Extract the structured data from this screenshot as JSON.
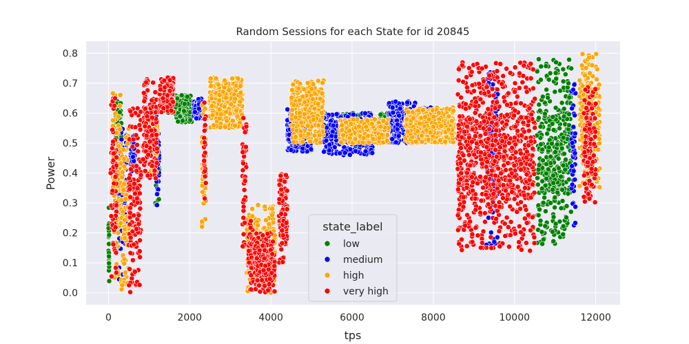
{
  "chart_data": {
    "type": "scatter",
    "title": "Random Sessions for each State for id 20845",
    "xlabel": "tps",
    "ylabel": "Power",
    "xlim": [
      -550,
      12600
    ],
    "ylim": [
      -0.04,
      0.84
    ],
    "xticks": [
      0,
      2000,
      4000,
      6000,
      8000,
      10000,
      12000
    ],
    "yticks": [
      0.0,
      0.1,
      0.2,
      0.3,
      0.4,
      0.5,
      0.6,
      0.7,
      0.8
    ],
    "grid": true,
    "legend": {
      "title": "state_label",
      "placement": "lower-center",
      "entries": [
        "low",
        "medium",
        "high",
        "very high"
      ]
    },
    "colors": {
      "low": "#008000",
      "medium": "#0000ff",
      "high": "#ffa500",
      "very high": "#ff0000",
      "background": "#eaeaf2",
      "grid": "#ffffff"
    },
    "series": [
      {
        "name": "low",
        "segments": [
          {
            "x": [
              0,
              20
            ],
            "y": [
              0.03,
              0.29
            ]
          },
          {
            "x": [
              180,
              320
            ],
            "y": [
              0.5,
              0.64
            ]
          },
          {
            "x": [
              1150,
              1250
            ],
            "y": [
              0.28,
              0.6
            ]
          },
          {
            "x": [
              1450,
              1600
            ],
            "y": [
              0.6,
              0.68
            ]
          },
          {
            "x": [
              1650,
              2050
            ],
            "y": [
              0.57,
              0.66
            ]
          },
          {
            "x": [
              5700,
              6200
            ],
            "y": [
              0.52,
              0.6
            ]
          },
          {
            "x": [
              6700,
              6900
            ],
            "y": [
              0.52,
              0.6
            ]
          },
          {
            "x": [
              7400,
              7800
            ],
            "y": [
              0.52,
              0.6
            ]
          },
          {
            "x": [
              10550,
              11400
            ],
            "y": [
              0.16,
              0.78
            ]
          }
        ]
      },
      {
        "name": "medium",
        "segments": [
          {
            "x": [
              250,
              450
            ],
            "y": [
              0.01,
              0.55
            ]
          },
          {
            "x": [
              550,
              650
            ],
            "y": [
              0.4,
              0.53
            ]
          },
          {
            "x": [
              1150,
              1250
            ],
            "y": [
              0.29,
              0.6
            ]
          },
          {
            "x": [
              2100,
              2300
            ],
            "y": [
              0.58,
              0.65
            ]
          },
          {
            "x": [
              4400,
              5000
            ],
            "y": [
              0.47,
              0.62
            ]
          },
          {
            "x": [
              5300,
              6500
            ],
            "y": [
              0.46,
              0.6
            ]
          },
          {
            "x": [
              6900,
              7600
            ],
            "y": [
              0.5,
              0.64
            ]
          },
          {
            "x": [
              7700,
              8000
            ],
            "y": [
              0.5,
              0.62
            ]
          },
          {
            "x": [
              9300,
              9600
            ],
            "y": [
              0.15,
              0.75
            ]
          },
          {
            "x": [
              11400,
              11500
            ],
            "y": [
              0.2,
              0.7
            ]
          }
        ]
      },
      {
        "name": "high",
        "segments": [
          {
            "x": [
              100,
              300
            ],
            "y": [
              0.05,
              0.67
            ]
          },
          {
            "x": [
              300,
              500
            ],
            "y": [
              0.01,
              0.55
            ]
          },
          {
            "x": [
              1000,
              1200
            ],
            "y": [
              0.4,
              0.62
            ]
          },
          {
            "x": [
              2300,
              2400
            ],
            "y": [
              0.22,
              0.64
            ]
          },
          {
            "x": [
              2500,
              3300
            ],
            "y": [
              0.55,
              0.72
            ]
          },
          {
            "x": [
              3400,
              3700
            ],
            "y": [
              0.0,
              0.3
            ]
          },
          {
            "x": [
              3800,
              4100
            ],
            "y": [
              0.0,
              0.3
            ]
          },
          {
            "x": [
              4500,
              5300
            ],
            "y": [
              0.5,
              0.71
            ]
          },
          {
            "x": [
              5700,
              6900
            ],
            "y": [
              0.5,
              0.58
            ]
          },
          {
            "x": [
              7300,
              8500
            ],
            "y": [
              0.5,
              0.62
            ]
          },
          {
            "x": [
              11600,
              12100
            ],
            "y": [
              0.35,
              0.8
            ]
          }
        ]
      },
      {
        "name": "very high",
        "segments": [
          {
            "x": [
              50,
              200
            ],
            "y": [
              0.05,
              0.65
            ]
          },
          {
            "x": [
              500,
              800
            ],
            "y": [
              0.0,
              0.62
            ]
          },
          {
            "x": [
              850,
              1200
            ],
            "y": [
              0.38,
              0.72
            ]
          },
          {
            "x": [
              1250,
              1600
            ],
            "y": [
              0.6,
              0.72
            ]
          },
          {
            "x": [
              2350,
              2400
            ],
            "y": [
              0.25,
              0.7
            ]
          },
          {
            "x": [
              3300,
              3400
            ],
            "y": [
              0.15,
              0.63
            ]
          },
          {
            "x": [
              3450,
              3600
            ],
            "y": [
              0.0,
              0.25
            ]
          },
          {
            "x": [
              3600,
              4100
            ],
            "y": [
              0.0,
              0.2
            ]
          },
          {
            "x": [
              4200,
              4400
            ],
            "y": [
              0.1,
              0.4
            ]
          },
          {
            "x": [
              8600,
              10500
            ],
            "y": [
              0.14,
              0.77
            ]
          },
          {
            "x": [
              11700,
              12000
            ],
            "y": [
              0.3,
              0.7
            ]
          }
        ]
      }
    ]
  }
}
